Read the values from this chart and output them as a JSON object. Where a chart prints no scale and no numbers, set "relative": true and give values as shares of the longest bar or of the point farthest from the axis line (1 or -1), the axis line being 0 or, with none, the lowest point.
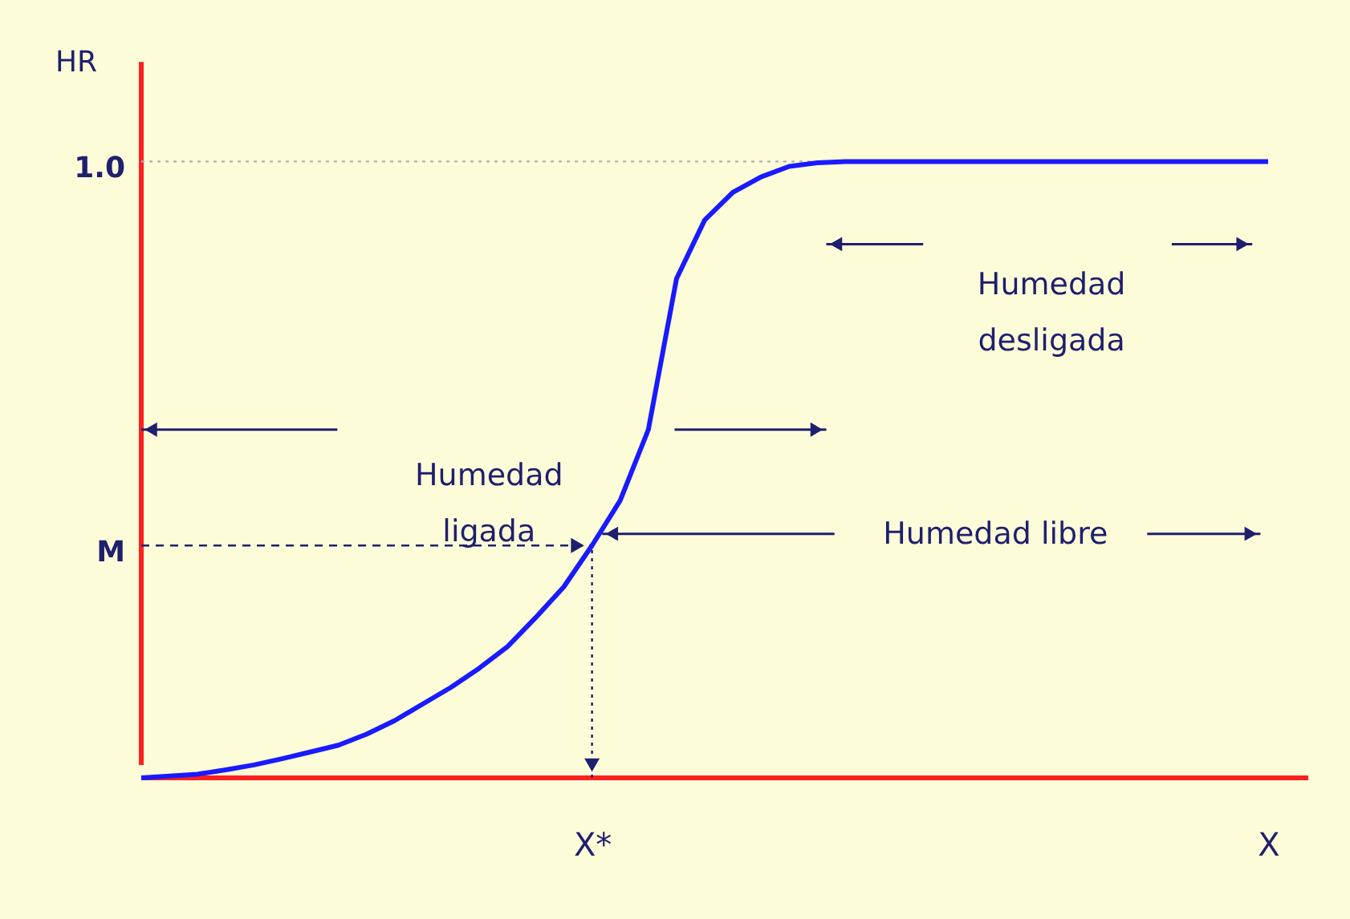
{
  "chart_data": {
    "type": "line",
    "relative": true,
    "ylabel": "HR",
    "categories": [
      null,
      null,
      null,
      null,
      null,
      null,
      null,
      null,
      null,
      null,
      null,
      null,
      null,
      null,
      null,
      null,
      "X*",
      null,
      null,
      null,
      null,
      null,
      null,
      null,
      null,
      null,
      null,
      null,
      null,
      null,
      null,
      null,
      null,
      null,
      null,
      null,
      null,
      null,
      null,
      null,
      "X"
    ],
    "series": [
      {
        "color": "#1a1aff",
        "values": [
          0,
          0.003,
          0.006,
          0.013,
          0.021,
          0.031,
          0.042,
          0.053,
          0.071,
          0.093,
          0.12,
          0.147,
          0.178,
          0.213,
          0.26,
          0.31,
          0.377,
          0.45,
          0.565,
          0.81,
          0.905,
          0.95,
          0.975,
          0.992,
          0.998,
          1.0,
          1.0,
          1.0,
          1.0,
          1.0,
          1.0,
          1.0,
          1.0,
          1.0,
          1.0,
          1.0,
          1.0,
          1.0,
          1.0,
          1.0,
          1.0
        ]
      }
    ],
    "ref_lines": [
      {
        "axis": "y",
        "value": 1.0,
        "label": "1.0",
        "color": "#b0b0b0",
        "line_style": "dotted"
      },
      {
        "axis": "y",
        "value": 0.377,
        "label": "M",
        "color": "#1f1f6e",
        "line_style": "dashed"
      },
      {
        "axis": "x",
        "value": "X*",
        "label": null,
        "color": "#1f1f6e",
        "line_style": "dotted"
      }
    ],
    "annotations": [
      "Humedad ligada",
      "Humedad libre",
      "Humedad desligada"
    ],
    "grid": false
  }
}
